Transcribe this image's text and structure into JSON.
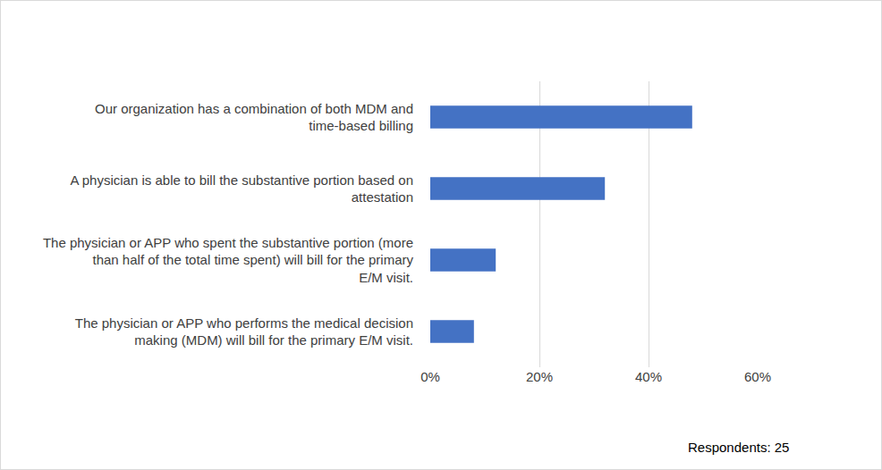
{
  "chart_data": {
    "type": "bar",
    "orientation": "horizontal",
    "categories": [
      "Our organization has a combination of both MDM and time-based billing",
      "A physician is able to bill the substantive portion based on attestation",
      "The physician or APP who spent the substantive portion (more than half of the total time spent) will bill for the primary E/M visit.",
      "The physician or APP who performs the medical decision making (MDM) will bill for the primary E/M visit."
    ],
    "values": [
      48,
      32,
      12,
      8
    ],
    "color": "#4472c4",
    "xlim": [
      0,
      60
    ],
    "xticks": [
      {
        "value": 0,
        "label": "0%"
      },
      {
        "value": 20,
        "label": "20%"
      },
      {
        "value": 40,
        "label": "40%"
      },
      {
        "value": 60,
        "label": "60%"
      }
    ],
    "grid": true,
    "annotations": [
      "Respondents: 25"
    ]
  }
}
